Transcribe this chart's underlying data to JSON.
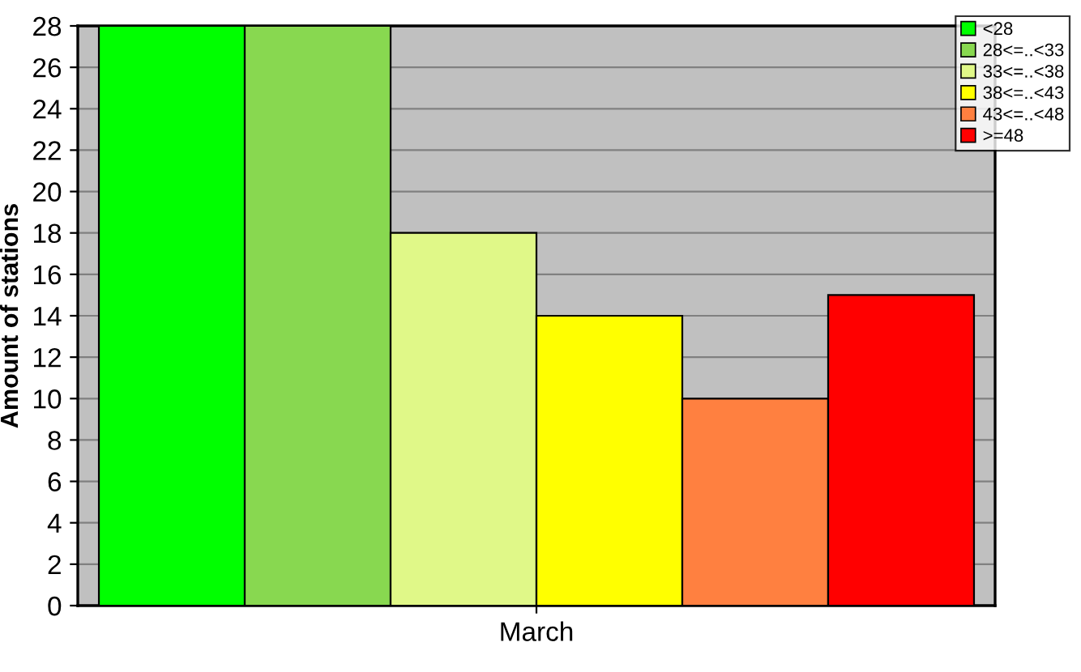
{
  "chart_data": {
    "type": "bar",
    "ylabel": "Amount of stations",
    "categories": [
      "March"
    ],
    "series": [
      {
        "name": "<28",
        "color": "#00ff00",
        "values": [
          28
        ]
      },
      {
        "name": "28<=..<33",
        "color": "#88d850",
        "values": [
          28
        ]
      },
      {
        "name": "33<=..<38",
        "color": "#e0f888",
        "values": [
          18
        ]
      },
      {
        "name": "38<=..<43",
        "color": "#ffff00",
        "values": [
          14
        ]
      },
      {
        "name": "43<=..<48",
        "color": "#ff8040",
        "values": [
          10
        ]
      },
      {
        "name": ">=48",
        "color": "#ff0000",
        "values": [
          15
        ]
      }
    ],
    "ylim": [
      0,
      28
    ],
    "yticks": [
      0,
      2,
      4,
      6,
      8,
      10,
      12,
      14,
      16,
      18,
      20,
      22,
      24,
      26,
      28
    ],
    "grid": "y",
    "legend": "top right"
  }
}
